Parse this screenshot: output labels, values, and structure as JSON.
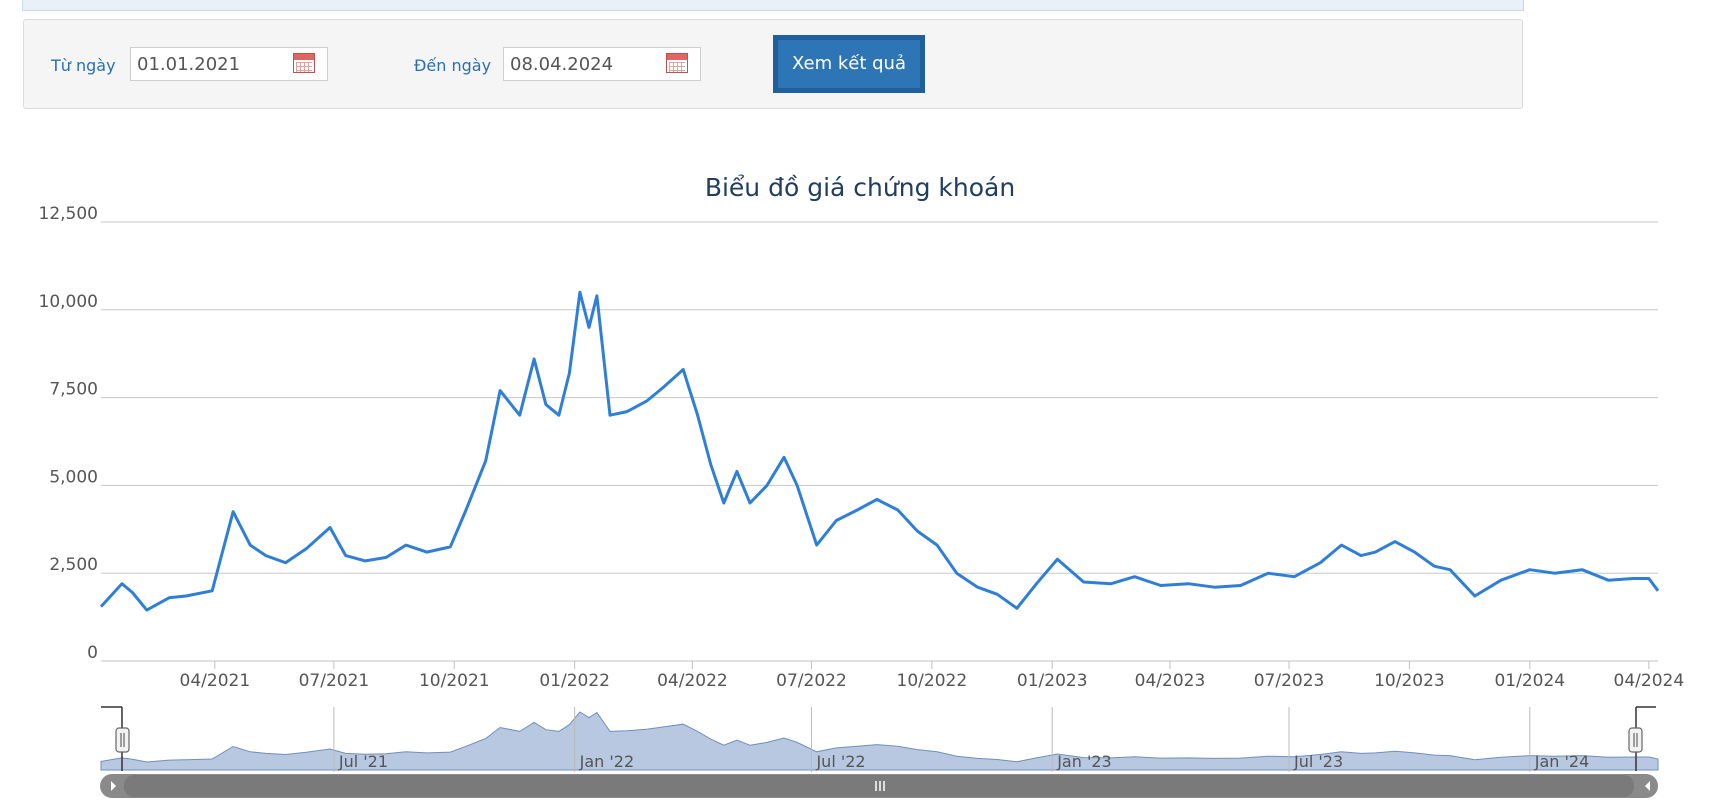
{
  "filter": {
    "from_label": "Từ ngày",
    "from_value": "01.01.2021",
    "to_label": "Đến ngày",
    "to_value": "08.04.2024",
    "submit_label": "Xem kết quả"
  },
  "chart_data": {
    "type": "line",
    "title": "Biểu đồ giá chứng khoán",
    "xlabel": "",
    "ylabel": "",
    "ylim": [
      0,
      12500
    ],
    "y_ticks": [
      "0",
      "2,500",
      "5,000",
      "7,500",
      "10,000",
      "12,500"
    ],
    "x_range": [
      "2021-01-04",
      "2024-04-08"
    ],
    "x_ticks": [
      {
        "date": "2021-04-01",
        "label": "04/2021"
      },
      {
        "date": "2021-07-01",
        "label": "07/2021"
      },
      {
        "date": "2021-10-01",
        "label": "10/2021"
      },
      {
        "date": "2022-01-01",
        "label": "01/2022"
      },
      {
        "date": "2022-04-01",
        "label": "04/2022"
      },
      {
        "date": "2022-07-01",
        "label": "07/2022"
      },
      {
        "date": "2022-10-01",
        "label": "10/2022"
      },
      {
        "date": "2023-01-01",
        "label": "01/2023"
      },
      {
        "date": "2023-04-01",
        "label": "04/2023"
      },
      {
        "date": "2023-07-01",
        "label": "07/2023"
      },
      {
        "date": "2023-10-01",
        "label": "10/2023"
      },
      {
        "date": "2024-01-01",
        "label": "01/2024"
      },
      {
        "date": "2024-04-01",
        "label": "04/2024"
      }
    ],
    "grid": true,
    "legend": "none",
    "color": "#2f7ed8",
    "series": [
      {
        "x": [
          "2021-01-04",
          "2021-01-20",
          "2021-01-28",
          "2021-02-08",
          "2021-02-25",
          "2021-03-10",
          "2021-03-30",
          "2021-04-15",
          "2021-04-28",
          "2021-05-10",
          "2021-05-25",
          "2021-06-10",
          "2021-06-28",
          "2021-07-10",
          "2021-07-25",
          "2021-08-10",
          "2021-08-25",
          "2021-09-10",
          "2021-09-28",
          "2021-10-10",
          "2021-10-25",
          "2021-11-05",
          "2021-11-20",
          "2021-12-01",
          "2021-12-10",
          "2021-12-20",
          "2021-12-28",
          "2022-01-05",
          "2022-01-12",
          "2022-01-18",
          "2022-01-28",
          "2022-02-10",
          "2022-02-25",
          "2022-03-10",
          "2022-03-25",
          "2022-04-05",
          "2022-04-15",
          "2022-04-25",
          "2022-05-05",
          "2022-05-15",
          "2022-05-28",
          "2022-06-10",
          "2022-06-20",
          "2022-07-05",
          "2022-07-20",
          "2022-08-05",
          "2022-08-20",
          "2022-09-05",
          "2022-09-20",
          "2022-10-05",
          "2022-10-20",
          "2022-11-05",
          "2022-11-20",
          "2022-12-05",
          "2022-12-20",
          "2023-01-05",
          "2023-01-25",
          "2023-02-15",
          "2023-03-05",
          "2023-03-25",
          "2023-04-15",
          "2023-05-05",
          "2023-05-25",
          "2023-06-15",
          "2023-07-05",
          "2023-07-25",
          "2023-08-10",
          "2023-08-25",
          "2023-09-05",
          "2023-09-20",
          "2023-10-05",
          "2023-10-20",
          "2023-11-01",
          "2023-11-20",
          "2023-12-10",
          "2024-01-01",
          "2024-01-20",
          "2024-02-10",
          "2024-03-01",
          "2024-03-20",
          "2024-04-01",
          "2024-04-08"
        ],
        "values": [
          1550,
          2200,
          1950,
          1450,
          1800,
          1850,
          2000,
          4250,
          3300,
          3000,
          2800,
          3200,
          3800,
          3000,
          2850,
          2950,
          3300,
          3100,
          3250,
          4300,
          5700,
          7700,
          7000,
          8600,
          7300,
          7000,
          8200,
          10500,
          9500,
          10400,
          7000,
          7100,
          7400,
          7800,
          8300,
          7000,
          5600,
          4500,
          5400,
          4500,
          5000,
          5800,
          5000,
          3300,
          4000,
          4300,
          4600,
          4300,
          3700,
          3300,
          2500,
          2100,
          1900,
          1500,
          2200,
          2900,
          2250,
          2200,
          2400,
          2150,
          2200,
          2100,
          2150,
          2500,
          2400,
          2800,
          3300,
          3000,
          3100,
          3400,
          3100,
          2700,
          2600,
          1850,
          2300,
          2600,
          2500,
          2600,
          2300,
          2350,
          2350,
          2000
        ]
      }
    ]
  },
  "navigator": {
    "tick_labels": [
      "Jul '21",
      "Jan '22",
      "Jul '22",
      "Jan '23",
      "Jul '23",
      "Jan '24"
    ],
    "tick_dates": [
      "2021-07-01",
      "2022-01-01",
      "2022-07-01",
      "2023-01-01",
      "2023-07-01",
      "2024-01-01"
    ],
    "fill_color": "#b8c8e0"
  }
}
